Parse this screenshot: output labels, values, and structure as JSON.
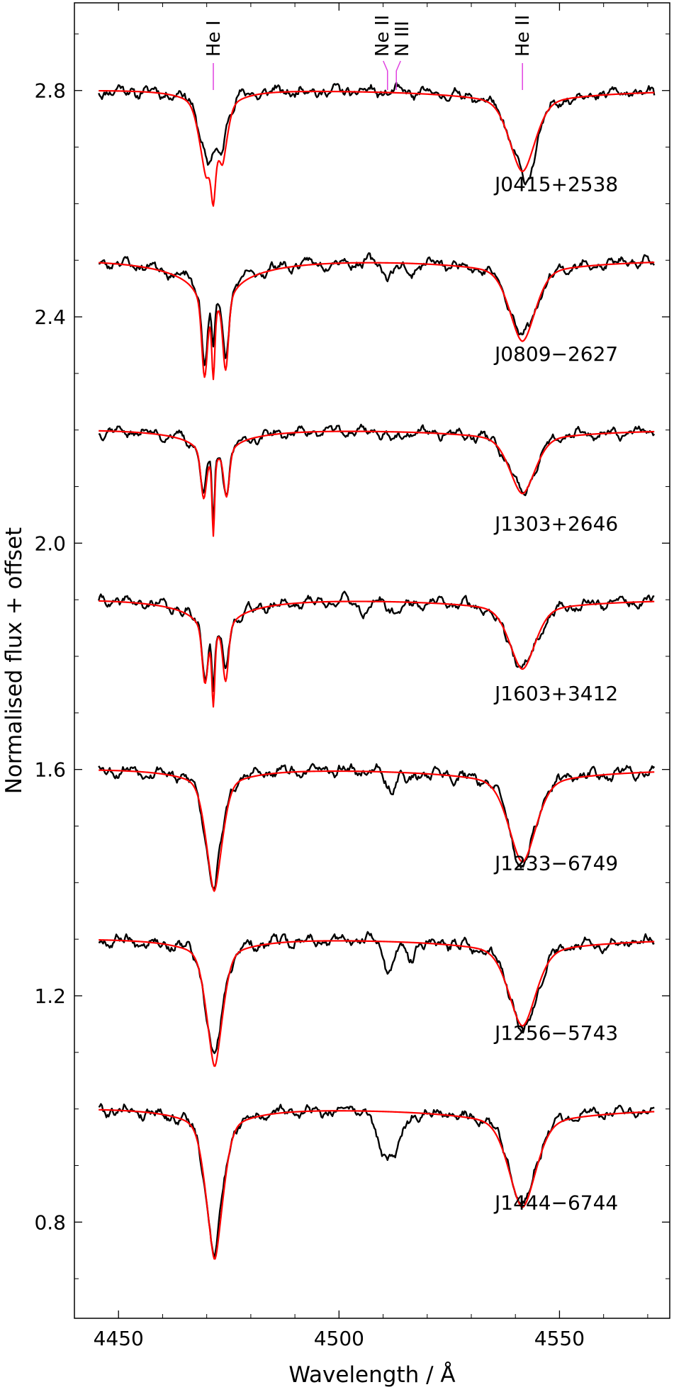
{
  "chart_data": {
    "type": "line",
    "xlabel": "Wavelength / Å",
    "ylabel": "Normalised flux + offset",
    "xlim": [
      4440,
      4575
    ],
    "ylim": [
      0.63,
      2.955
    ],
    "x_ticks": [
      4450,
      4500,
      4550
    ],
    "x_tick_labels": [
      "4450",
      "4500",
      "4550"
    ],
    "y_ticks": [
      0.8,
      1.2,
      1.6,
      2.0,
      2.4,
      2.8
    ],
    "y_tick_labels": [
      "0.8",
      "1.2",
      "1.6",
      "2.0",
      "2.4",
      "2.8"
    ],
    "x_range": [
      4445.5,
      4571.5
    ],
    "colors": {
      "observed": "#000000",
      "model": "#ff0000",
      "line_marker": "#e040e0"
    },
    "line_ids": [
      {
        "label": "He I",
        "wavelength": 4471.5
      },
      {
        "label": "Ne II",
        "wavelength": 4511.0
      },
      {
        "label": "N III",
        "wavelength": 4513.0
      },
      {
        "label": "He II",
        "wavelength": 4541.6
      }
    ],
    "series": [
      {
        "name": "J0415+2538",
        "offset": 1.8,
        "label_y": 2.635,
        "seed": 11,
        "noise": 0.012,
        "model_lines": [
          {
            "center": 4469.9,
            "depth": 0.13,
            "sigma": 1.6,
            "gamma": 0.9
          },
          {
            "center": 4471.5,
            "depth": 0.1,
            "sigma": 0.5,
            "gamma": 0.5
          },
          {
            "center": 4473.6,
            "depth": 0.1,
            "sigma": 1.2,
            "gamma": 0.7
          },
          {
            "center": 4541.6,
            "depth": 0.14,
            "sigma": 3.0,
            "gamma": 2.5
          }
        ],
        "obs_lines": [
          {
            "center": 4470.2,
            "depth": 0.12,
            "sigma": 1.8,
            "gamma": 0.9
          },
          {
            "center": 4473.3,
            "depth": 0.08,
            "sigma": 1.3,
            "gamma": 0.6
          },
          {
            "center": 4541.8,
            "depth": 0.14,
            "sigma": 3.2,
            "gamma": 2.2
          },
          {
            "center": 4543.0,
            "depth": 0.03,
            "sigma": 1.0,
            "gamma": 0.0
          }
        ]
      },
      {
        "name": "J0809−2627",
        "offset": 1.5,
        "label_y": 2.335,
        "seed": 23,
        "noise": 0.011,
        "model_lines": [
          {
            "center": 4469.5,
            "depth": 0.17,
            "sigma": 0.6,
            "gamma": 1.6
          },
          {
            "center": 4471.5,
            "depth": 0.14,
            "sigma": 0.35,
            "gamma": 0.4
          },
          {
            "center": 4474.3,
            "depth": 0.16,
            "sigma": 0.6,
            "gamma": 1.6
          },
          {
            "center": 4541.6,
            "depth": 0.14,
            "sigma": 3.0,
            "gamma": 2.5
          }
        ],
        "obs_lines": [
          {
            "center": 4469.5,
            "depth": 0.15,
            "sigma": 0.6,
            "gamma": 1.5
          },
          {
            "center": 4471.5,
            "depth": 0.1,
            "sigma": 0.35,
            "gamma": 0.4
          },
          {
            "center": 4474.3,
            "depth": 0.15,
            "sigma": 0.6,
            "gamma": 1.5
          },
          {
            "center": 4541.6,
            "depth": 0.13,
            "sigma": 3.2,
            "gamma": 2.4
          },
          {
            "center": 4511.5,
            "depth": 0.02,
            "sigma": 1.5,
            "gamma": 0.0
          },
          {
            "center": 4516.0,
            "depth": 0.02,
            "sigma": 1.0,
            "gamma": 0.0
          }
        ]
      },
      {
        "name": "J1303+2646",
        "offset": 1.2,
        "label_y": 2.035,
        "seed": 37,
        "noise": 0.01,
        "model_lines": [
          {
            "center": 4469.3,
            "depth": 0.1,
            "sigma": 0.6,
            "gamma": 1.3
          },
          {
            "center": 4471.5,
            "depth": 0.15,
            "sigma": 0.3,
            "gamma": 0.3
          },
          {
            "center": 4474.5,
            "depth": 0.1,
            "sigma": 0.6,
            "gamma": 1.3
          },
          {
            "center": 4541.6,
            "depth": 0.11,
            "sigma": 3.0,
            "gamma": 2.5
          }
        ],
        "obs_lines": [
          {
            "center": 4469.3,
            "depth": 0.09,
            "sigma": 0.6,
            "gamma": 1.3
          },
          {
            "center": 4471.5,
            "depth": 0.14,
            "sigma": 0.3,
            "gamma": 0.3
          },
          {
            "center": 4474.5,
            "depth": 0.1,
            "sigma": 0.6,
            "gamma": 1.3
          },
          {
            "center": 4541.6,
            "depth": 0.11,
            "sigma": 3.0,
            "gamma": 2.4
          },
          {
            "center": 4513.0,
            "depth": 0.015,
            "sigma": 1.5,
            "gamma": 0.0
          }
        ]
      },
      {
        "name": "J1603+3412",
        "offset": 0.9,
        "label_y": 1.735,
        "seed": 41,
        "noise": 0.011,
        "model_lines": [
          {
            "center": 4469.6,
            "depth": 0.12,
            "sigma": 0.6,
            "gamma": 1.4
          },
          {
            "center": 4471.5,
            "depth": 0.14,
            "sigma": 0.35,
            "gamma": 0.35
          },
          {
            "center": 4474.3,
            "depth": 0.12,
            "sigma": 0.6,
            "gamma": 1.4
          },
          {
            "center": 4541.6,
            "depth": 0.12,
            "sigma": 3.0,
            "gamma": 2.5
          }
        ],
        "obs_lines": [
          {
            "center": 4469.6,
            "depth": 0.11,
            "sigma": 0.6,
            "gamma": 1.4
          },
          {
            "center": 4471.5,
            "depth": 0.12,
            "sigma": 0.35,
            "gamma": 0.35
          },
          {
            "center": 4474.3,
            "depth": 0.11,
            "sigma": 0.6,
            "gamma": 1.4
          },
          {
            "center": 4541.6,
            "depth": 0.12,
            "sigma": 3.2,
            "gamma": 2.4
          },
          {
            "center": 4506.0,
            "depth": 0.02,
            "sigma": 1.0,
            "gamma": 0.0
          },
          {
            "center": 4513.0,
            "depth": 0.02,
            "sigma": 1.5,
            "gamma": 0.0
          }
        ]
      },
      {
        "name": "J1233−6749",
        "offset": 0.6,
        "label_y": 1.435,
        "seed": 53,
        "noise": 0.012,
        "model_lines": [
          {
            "center": 4471.7,
            "depth": 0.21,
            "sigma": 1.9,
            "gamma": 1.2
          },
          {
            "center": 4541.6,
            "depth": 0.16,
            "sigma": 3.2,
            "gamma": 2.6
          }
        ],
        "obs_lines": [
          {
            "center": 4471.6,
            "depth": 0.2,
            "sigma": 2.0,
            "gamma": 1.1
          },
          {
            "center": 4541.6,
            "depth": 0.17,
            "sigma": 3.0,
            "gamma": 2.2
          },
          {
            "center": 4511.5,
            "depth": 0.03,
            "sigma": 1.2,
            "gamma": 0.0
          },
          {
            "center": 4516.0,
            "depth": 0.02,
            "sigma": 1.0,
            "gamma": 0.0
          }
        ]
      },
      {
        "name": "J1256−5743",
        "offset": 0.3,
        "label_y": 1.135,
        "seed": 67,
        "noise": 0.012,
        "model_lines": [
          {
            "center": 4471.8,
            "depth": 0.22,
            "sigma": 1.9,
            "gamma": 1.2
          },
          {
            "center": 4541.6,
            "depth": 0.15,
            "sigma": 3.2,
            "gamma": 2.6
          }
        ],
        "obs_lines": [
          {
            "center": 4471.7,
            "depth": 0.21,
            "sigma": 2.0,
            "gamma": 1.1
          },
          {
            "center": 4541.8,
            "depth": 0.16,
            "sigma": 3.0,
            "gamma": 2.2
          },
          {
            "center": 4511.5,
            "depth": 0.05,
            "sigma": 1.3,
            "gamma": 0.0
          },
          {
            "center": 4516.0,
            "depth": 0.03,
            "sigma": 1.0,
            "gamma": 0.0
          }
        ]
      },
      {
        "name": "J1444−6744",
        "offset": 0.0,
        "label_y": 0.835,
        "seed": 79,
        "noise": 0.012,
        "model_lines": [
          {
            "center": 4471.8,
            "depth": 0.26,
            "sigma": 2.0,
            "gamma": 1.2
          },
          {
            "center": 4541.6,
            "depth": 0.17,
            "sigma": 3.2,
            "gamma": 2.6
          }
        ],
        "obs_lines": [
          {
            "center": 4471.7,
            "depth": 0.25,
            "sigma": 2.0,
            "gamma": 1.2
          },
          {
            "center": 4541.6,
            "depth": 0.17,
            "sigma": 3.0,
            "gamma": 2.2
          },
          {
            "center": 4512.0,
            "depth": 0.08,
            "sigma": 2.2,
            "gamma": 0.0
          },
          {
            "center": 4509.0,
            "depth": 0.03,
            "sigma": 1.2,
            "gamma": 0.0
          }
        ]
      }
    ]
  }
}
